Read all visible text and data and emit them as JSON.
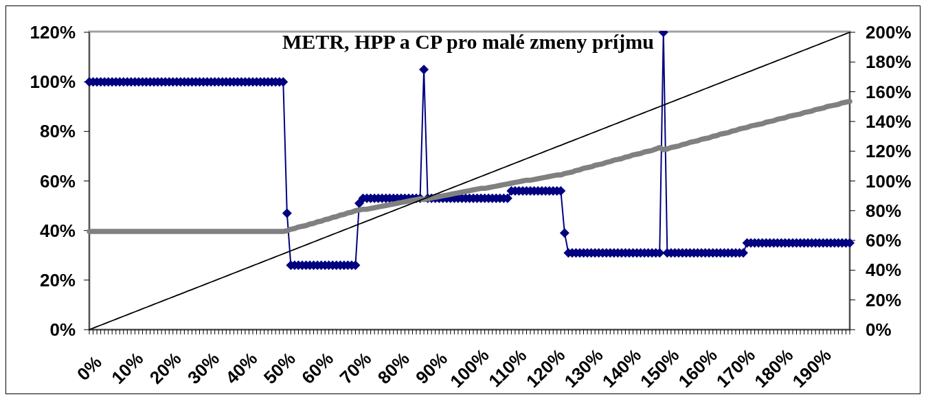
{
  "chart_data": {
    "type": "line",
    "title": "METR, HPP a CP pro malé zmeny príjmu",
    "categories": [
      "0%",
      null,
      null,
      null,
      null,
      null,
      null,
      null,
      null,
      null,
      "10%",
      null,
      null,
      null,
      null,
      null,
      null,
      null,
      null,
      null,
      "20%",
      null,
      null,
      null,
      null,
      null,
      null,
      null,
      null,
      null,
      "30%",
      null,
      null,
      null,
      null,
      null,
      null,
      null,
      null,
      null,
      "40%",
      null,
      null,
      null,
      null,
      null,
      null,
      null,
      null,
      null,
      "50%",
      null,
      null,
      null,
      null,
      null,
      null,
      null,
      null,
      null,
      "60%",
      null,
      null,
      null,
      null,
      null,
      null,
      null,
      null,
      null,
      "70%",
      null,
      null,
      null,
      null,
      null,
      null,
      null,
      null,
      null,
      "80%",
      null,
      null,
      null,
      null,
      null,
      null,
      null,
      null,
      null,
      "90%",
      null,
      null,
      null,
      null,
      null,
      null,
      null,
      null,
      null,
      "100%",
      null,
      null,
      null,
      null,
      null,
      null,
      null,
      null,
      null,
      "110%",
      null,
      null,
      null,
      null,
      null,
      null,
      null,
      null,
      null,
      "120%",
      null,
      null,
      null,
      null,
      null,
      null,
      null,
      null,
      null,
      "130%",
      null,
      null,
      null,
      null,
      null,
      null,
      null,
      null,
      null,
      "140%",
      null,
      null,
      null,
      null,
      null,
      null,
      null,
      null,
      null,
      "150%",
      null,
      null,
      null,
      null,
      null,
      null,
      null,
      null,
      null,
      "160%",
      null,
      null,
      null,
      null,
      null,
      null,
      null,
      null,
      null,
      "170%",
      null,
      null,
      null,
      null,
      null,
      null,
      null,
      null,
      null,
      "180%",
      null,
      null,
      null,
      null,
      null,
      null,
      null,
      null,
      null,
      "190%",
      null,
      null,
      null,
      null,
      null,
      null,
      null,
      null,
      null,
      null
    ],
    "ylim": [
      0,
      120
    ],
    "yticks": [
      {
        "value": 0,
        "label": "0%"
      },
      {
        "value": 20,
        "label": "20%"
      },
      {
        "value": 40,
        "label": "40%"
      },
      {
        "value": 60,
        "label": "60%"
      },
      {
        "value": 80,
        "label": "80%"
      },
      {
        "value": 100,
        "label": "100%"
      },
      {
        "value": 120,
        "label": "120%"
      }
    ],
    "y2lim": [
      0,
      200
    ],
    "y2ticks": [
      {
        "value": 0,
        "label": "0%"
      },
      {
        "value": 20,
        "label": "20%"
      },
      {
        "value": 40,
        "label": "40%"
      },
      {
        "value": 60,
        "label": "60%"
      },
      {
        "value": 80,
        "label": "80%"
      },
      {
        "value": 100,
        "label": "100%"
      },
      {
        "value": 120,
        "label": "120%"
      },
      {
        "value": 140,
        "label": "140%"
      },
      {
        "value": 160,
        "label": "160%"
      },
      {
        "value": 180,
        "label": "180%"
      },
      {
        "value": 200,
        "label": "200%"
      }
    ],
    "series": [
      {
        "color": "#000080",
        "marker": "diamond",
        "values": [
          100,
          100,
          100,
          100,
          100,
          100,
          100,
          100,
          100,
          100,
          100,
          100,
          100,
          100,
          100,
          100,
          100,
          100,
          100,
          100,
          100,
          100,
          100,
          100,
          100,
          100,
          100,
          100,
          100,
          100,
          100,
          100,
          100,
          100,
          100,
          100,
          100,
          100,
          100,
          100,
          100,
          100,
          100,
          100,
          100,
          100,
          100,
          100,
          100,
          100,
          100,
          100,
          47,
          26,
          26,
          26,
          26,
          26,
          26,
          26,
          26,
          26,
          26,
          26,
          26,
          26,
          26,
          26,
          26,
          26,
          26,
          51,
          53,
          53,
          53,
          53,
          53,
          53,
          53,
          53,
          53,
          53,
          53,
          53,
          53,
          53,
          53,
          53,
          105,
          53,
          53,
          53,
          53,
          53,
          53,
          53,
          53,
          53,
          53,
          53,
          53,
          53,
          53,
          53,
          53,
          53,
          53,
          53,
          53,
          53,
          53,
          56,
          56,
          56,
          56,
          56,
          56,
          56,
          56,
          56,
          56,
          56,
          56,
          56,
          56,
          39,
          31,
          31,
          31,
          31,
          31,
          31,
          31,
          31,
          31,
          31,
          31,
          31,
          31,
          31,
          31,
          31,
          31,
          31,
          31,
          31,
          31,
          31,
          31,
          31,
          31,
          120,
          31,
          31,
          31,
          31,
          31,
          31,
          31,
          31,
          31,
          31,
          31,
          31,
          31,
          31,
          31,
          31,
          31,
          31,
          31,
          31,
          31,
          35,
          35,
          35,
          35,
          35,
          35,
          35,
          35,
          35,
          35,
          35,
          35,
          35,
          35,
          35,
          35,
          35,
          35,
          35,
          35,
          35,
          35,
          35,
          35,
          35,
          35,
          35,
          35
        ]
      },
      {
        "color": "#808080",
        "axis": "y2",
        "values": [
          66,
          66,
          66,
          66,
          66,
          66,
          66,
          66,
          66,
          66,
          66,
          66,
          66,
          66,
          66,
          66,
          66,
          66,
          66,
          66,
          66,
          66,
          66,
          66,
          66,
          66,
          66,
          66,
          66,
          66,
          66,
          66,
          66,
          66,
          66,
          66,
          66,
          66,
          66,
          66,
          66,
          66,
          66,
          66,
          66,
          66,
          66,
          66,
          66,
          66,
          66,
          66,
          66.5,
          67.5,
          68,
          69,
          69.5,
          70,
          71,
          71.5,
          72.5,
          73,
          74,
          74.5,
          75.5,
          76,
          77,
          77.5,
          78.5,
          79,
          80,
          80.5,
          81,
          81,
          81.5,
          82,
          82.5,
          83,
          83.5,
          84,
          84.5,
          85,
          85.5,
          86,
          86.5,
          87,
          87.5,
          88,
          87.5,
          88,
          88.5,
          89,
          89.5,
          90,
          90.5,
          91,
          91.5,
          92,
          92.5,
          93,
          93.5,
          94,
          94.5,
          95,
          95,
          95.5,
          96,
          96.5,
          97,
          97.5,
          98,
          98.5,
          99,
          99.5,
          100,
          100.5,
          100.5,
          101,
          101.5,
          102,
          102.5,
          103,
          103.5,
          104,
          104,
          105,
          105.5,
          106,
          107,
          107.5,
          108.5,
          109,
          109.5,
          110.5,
          111,
          111.5,
          112.5,
          113,
          114,
          114.5,
          115,
          116,
          116.5,
          117.5,
          118,
          118.5,
          119.5,
          120,
          120.5,
          121.5,
          122.5,
          121,
          121.5,
          122.5,
          123,
          123.5,
          124.5,
          125,
          126,
          126.5,
          127,
          128,
          128.5,
          129,
          130,
          130.5,
          131.5,
          132,
          132.5,
          133.5,
          134,
          135,
          135.5,
          136,
          137,
          137.5,
          138,
          138.5,
          139.5,
          140,
          140.5,
          141.5,
          142,
          142.5,
          143.5,
          144,
          144.5,
          145,
          146,
          146.5,
          147,
          148,
          148.5,
          149,
          150,
          150.5,
          151,
          151.5,
          152.5,
          153,
          153.5
        ]
      },
      {
        "color": "#000000",
        "axis": "y2",
        "values": [
          0,
          1,
          2,
          3,
          4,
          5,
          6,
          7,
          8,
          9,
          10,
          11,
          12,
          13,
          14,
          15,
          16,
          17,
          18,
          19,
          20,
          21,
          22,
          23,
          24,
          25,
          26,
          27,
          28,
          29,
          30,
          31,
          32,
          33,
          34,
          35,
          36,
          37,
          38,
          39,
          40,
          41,
          42,
          43,
          44,
          45,
          46,
          47,
          48,
          49,
          50,
          51,
          52,
          53,
          54,
          55,
          56,
          57,
          58,
          59,
          60,
          61,
          62,
          63,
          64,
          65,
          66,
          67,
          68,
          69,
          70,
          71,
          72,
          73,
          74,
          75,
          76,
          77,
          78,
          79,
          80,
          81,
          82,
          83,
          84,
          85,
          86,
          87,
          88,
          89,
          90,
          91,
          92,
          93,
          94,
          95,
          96,
          97,
          98,
          99,
          100,
          101,
          102,
          103,
          104,
          105,
          106,
          107,
          108,
          109,
          110,
          111,
          112,
          113,
          114,
          115,
          116,
          117,
          118,
          119,
          120,
          121,
          122,
          123,
          124,
          125,
          126,
          127,
          128,
          129,
          130,
          131,
          132,
          133,
          134,
          135,
          136,
          137,
          138,
          139,
          140,
          141,
          142,
          143,
          144,
          145,
          146,
          147,
          148,
          149,
          150,
          151,
          152,
          153,
          154,
          155,
          156,
          157,
          158,
          159,
          160,
          161,
          162,
          163,
          164,
          165,
          166,
          167,
          168,
          169,
          170,
          171,
          172,
          173,
          174,
          175,
          176,
          177,
          178,
          179,
          180,
          181,
          182,
          183,
          184,
          185,
          186,
          187,
          188,
          189,
          190,
          191,
          192,
          193,
          194,
          195,
          196,
          197,
          198,
          199,
          200
        ]
      }
    ]
  }
}
